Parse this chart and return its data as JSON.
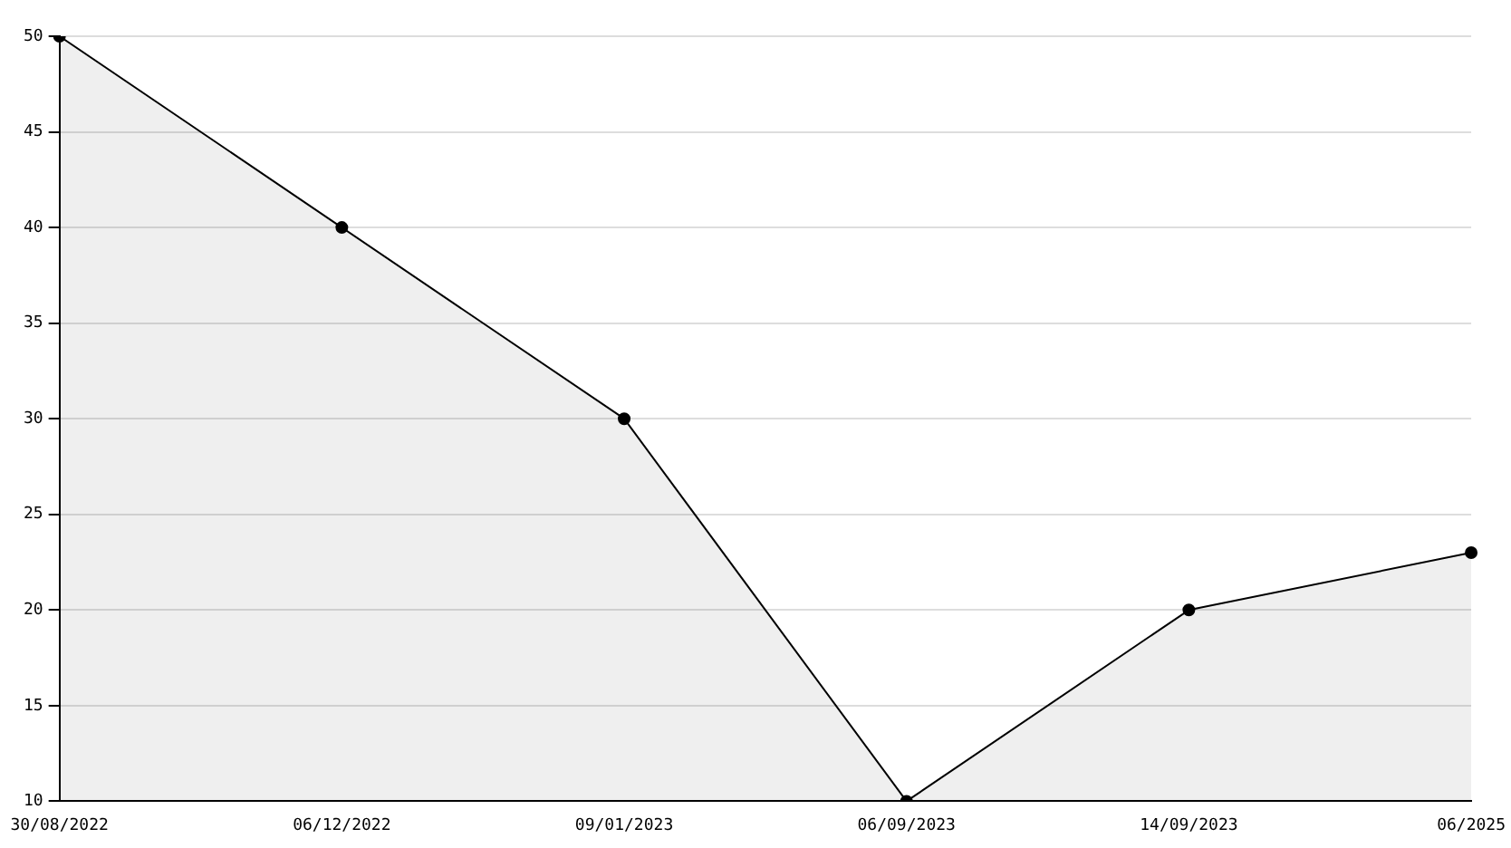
{
  "chart_data": {
    "type": "area",
    "categories": [
      "30/08/2022",
      "06/12/2022",
      "09/01/2023",
      "06/09/2023",
      "14/09/2023",
      "06/2025"
    ],
    "series": [
      {
        "color": "#000000",
        "values": [
          50,
          40,
          30,
          10,
          20,
          23
        ]
      }
    ],
    "ylim": [
      10,
      50
    ],
    "yticks": [
      10,
      15,
      20,
      25,
      30,
      35,
      40,
      45,
      50
    ],
    "grid": "y",
    "legend": false,
    "marker": "circle",
    "line_style": "solid"
  }
}
